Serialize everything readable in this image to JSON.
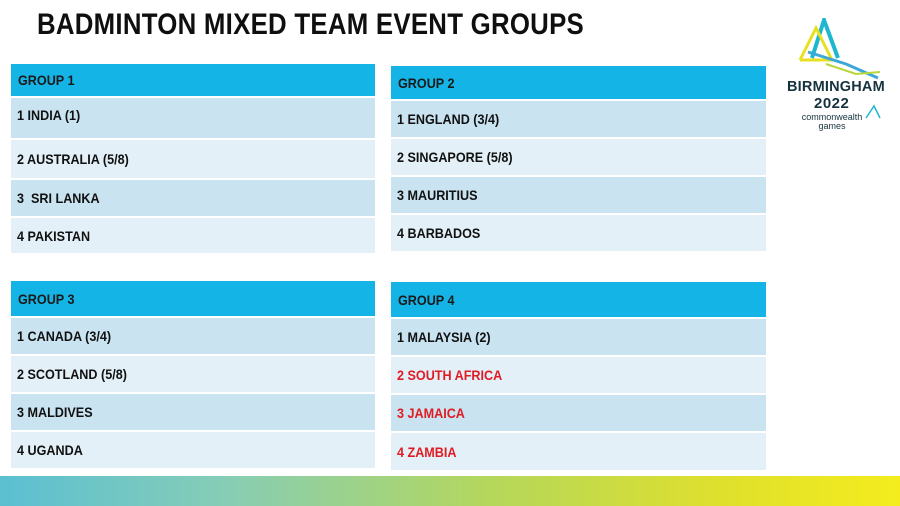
{
  "title": "BADMINTON MIXED TEAM EVENT GROUPS",
  "logo": {
    "city": "BIRMINGHAM",
    "year": "2022",
    "line1": "commonwealth",
    "line2": "games"
  },
  "groups": [
    {
      "name": "GROUP 1",
      "teams": [
        {
          "text": "1 INDIA (1)",
          "color": "#111111"
        },
        {
          "text": "2 AUSTRALIA (5/8)",
          "color": "#111111"
        },
        {
          "text": "3  SRI LANKA",
          "color": "#111111"
        },
        {
          "text": "4 PAKISTAN",
          "color": "#111111"
        }
      ]
    },
    {
      "name": "GROUP 2",
      "teams": [
        {
          "text": "1 ENGLAND (3/4)",
          "color": "#111111"
        },
        {
          "text": "2 SINGAPORE (5/8)",
          "color": "#111111"
        },
        {
          "text": "3 MAURITIUS",
          "color": "#111111"
        },
        {
          "text": "4 BARBADOS",
          "color": "#111111"
        }
      ]
    },
    {
      "name": "GROUP 3",
      "teams": [
        {
          "text": "1 CANADA (3/4)",
          "color": "#111111"
        },
        {
          "text": "2 SCOTLAND (5/8)",
          "color": "#111111"
        },
        {
          "text": "3 MALDIVES",
          "color": "#111111"
        },
        {
          "text": "4 UGANDA",
          "color": "#111111"
        }
      ]
    },
    {
      "name": "GROUP 4",
      "teams": [
        {
          "text": "1 MALAYSIA (2)",
          "color": "#111111"
        },
        {
          "text": "2 SOUTH AFRICA",
          "color": "#e11b22"
        },
        {
          "text": "3 JAMAICA",
          "color": "#e11b22"
        },
        {
          "text": "4 ZAMBIA",
          "color": "#e11b22"
        }
      ]
    }
  ],
  "colors": {
    "header_blue": "#14b4e6",
    "row_odd": "#c9e3f1",
    "row_even": "#e3f0f8",
    "highlight_red": "#e11b22"
  }
}
